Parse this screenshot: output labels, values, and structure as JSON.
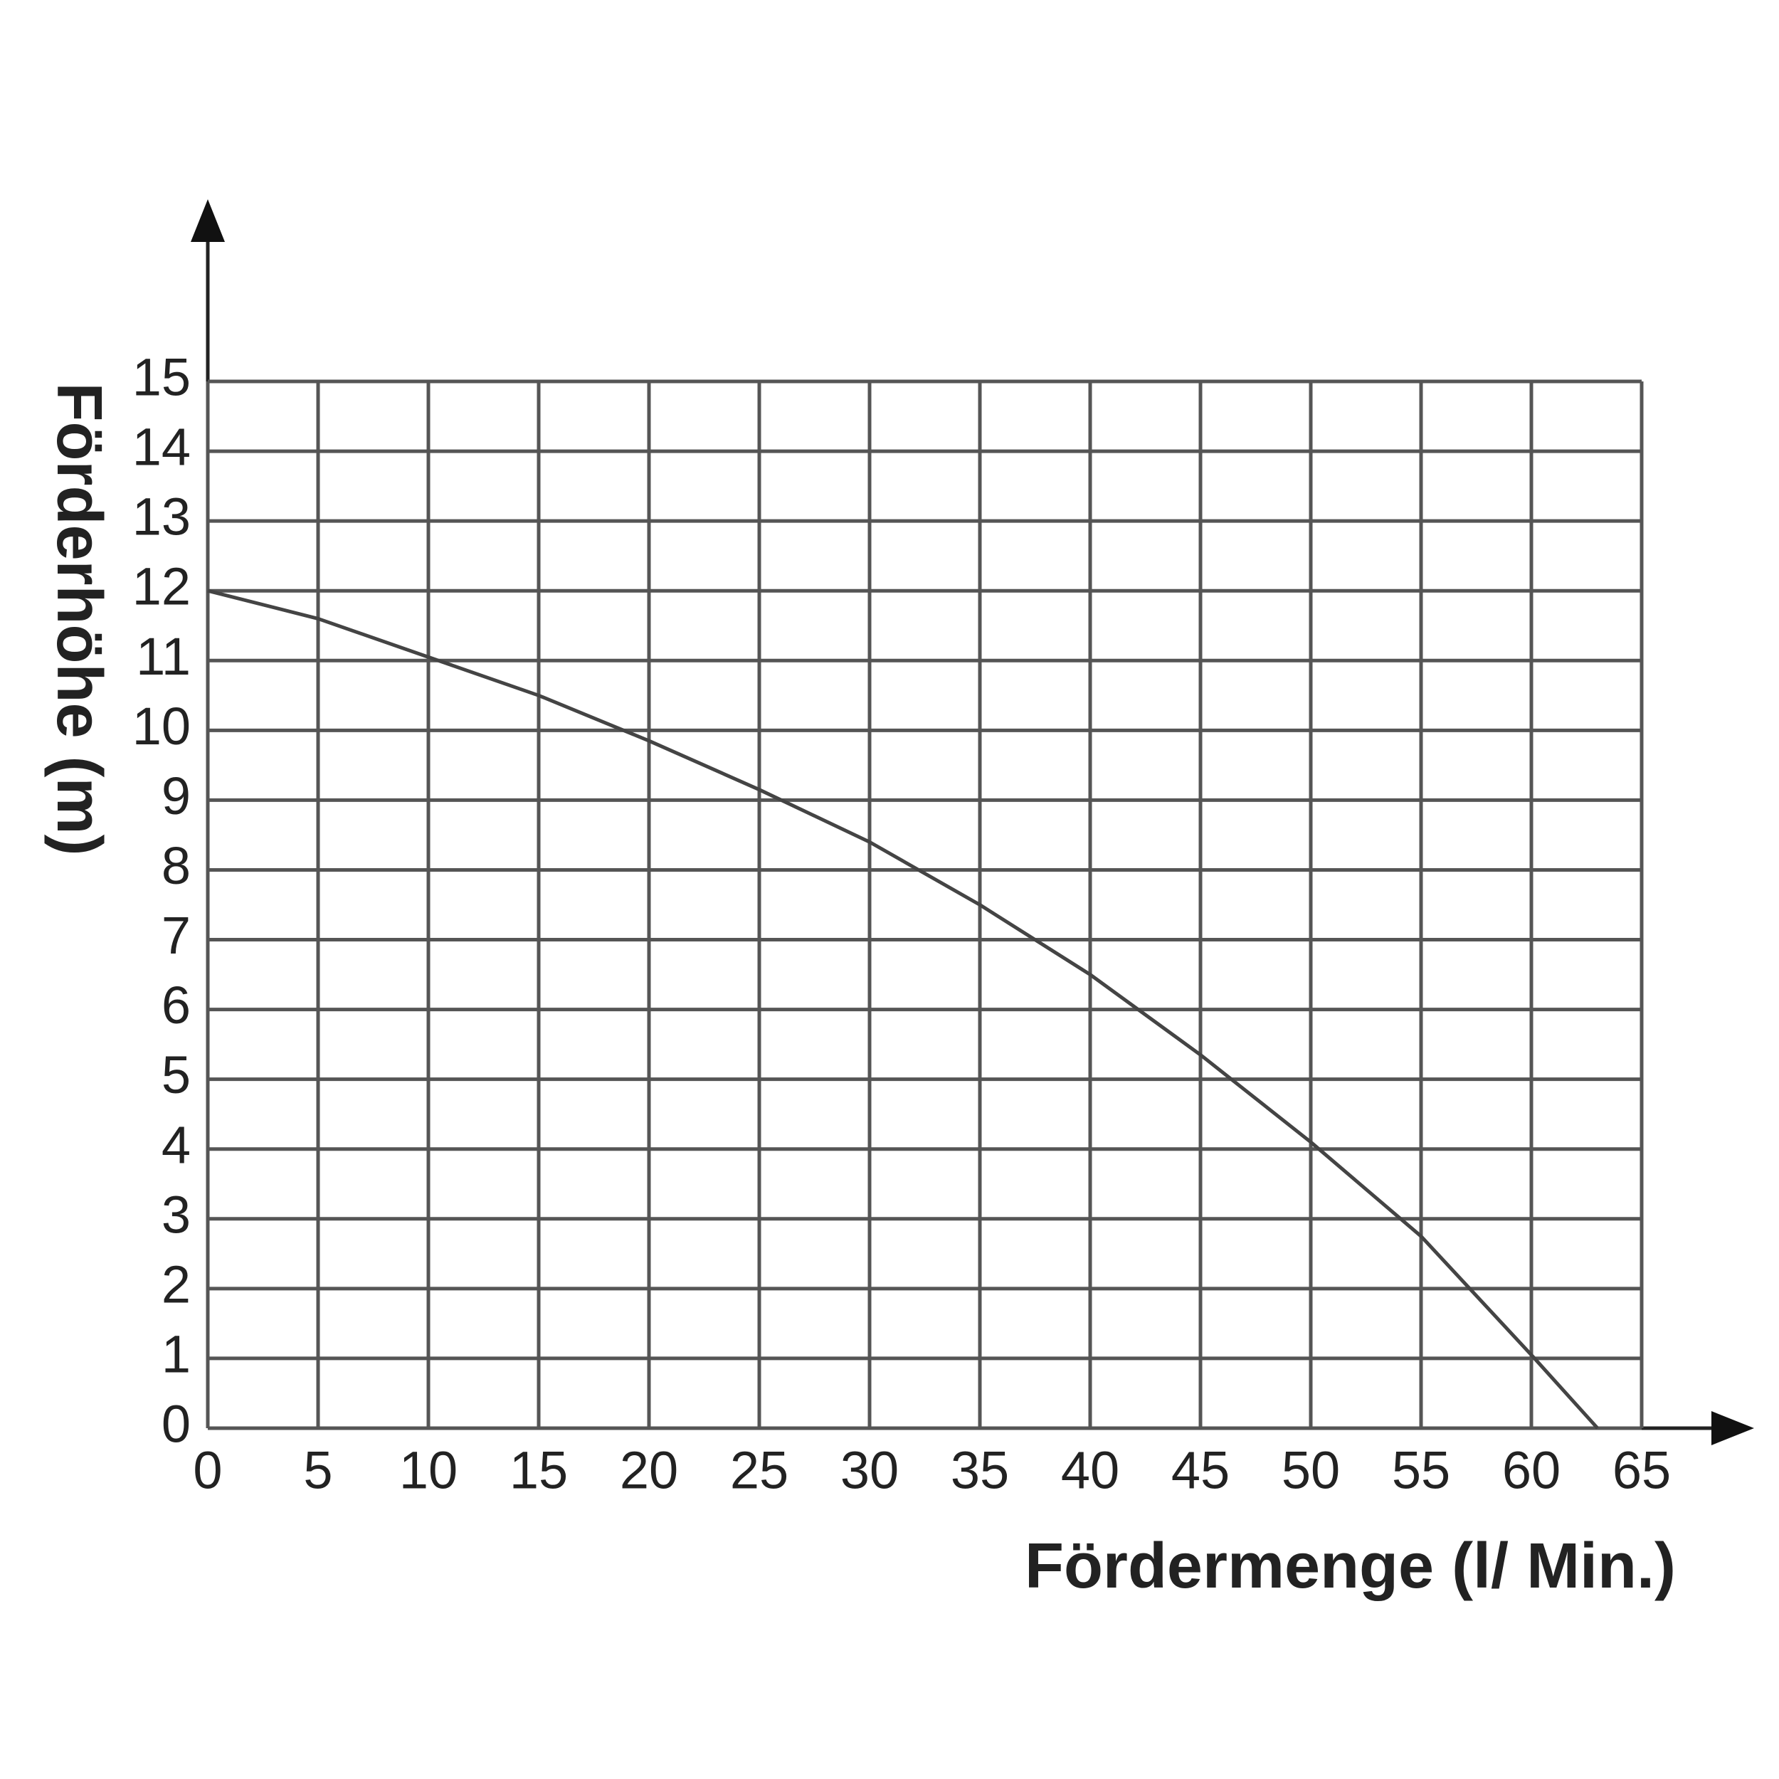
{
  "chart_data": {
    "type": "line",
    "x_label": "Fördermenge (l/ Min.)",
    "y_label": "Förderhöhe (m)",
    "x": [
      0,
      5,
      10,
      15,
      20,
      25,
      30,
      35,
      40,
      45,
      50,
      55,
      60,
      63
    ],
    "series": [
      {
        "color": "#444444",
        "values": [
          12,
          11.6,
          11.05,
          10.5,
          9.85,
          9.15,
          8.4,
          7.5,
          6.5,
          5.35,
          4.1,
          2.75,
          1.05,
          0
        ]
      }
    ],
    "xlim": [
      0,
      65
    ],
    "xticks": [
      0,
      5,
      10,
      15,
      20,
      25,
      30,
      35,
      40,
      45,
      50,
      55,
      60,
      65
    ],
    "ylim": [
      0,
      15
    ],
    "yticks": [
      0,
      1,
      2,
      3,
      4,
      5,
      6,
      7,
      8,
      9,
      10,
      11,
      12,
      13,
      14,
      15
    ],
    "grid": true,
    "grid_color": "#555555"
  }
}
